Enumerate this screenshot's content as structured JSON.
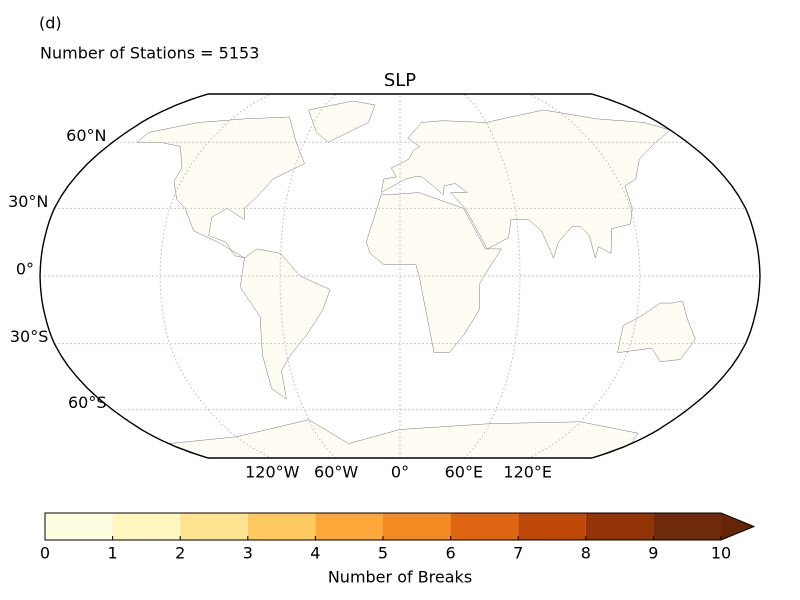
{
  "panel_label": "(d)",
  "subtitle": "Number of Stations = 5153",
  "map": {
    "title": "SLP",
    "lat_labels": [
      "60°N",
      "30°N",
      "0°",
      "30°S",
      "60°S"
    ],
    "lon_labels": [
      "120°W",
      "60°W",
      "0°",
      "60°E",
      "120°E"
    ]
  },
  "colorbar": {
    "ticks": [
      0,
      1,
      2,
      3,
      4,
      5,
      6,
      7,
      8,
      9,
      10
    ],
    "colors": [
      "#fffde0",
      "#fff5bf",
      "#fee391",
      "#fec95e",
      "#fea83c",
      "#f38a23",
      "#de6511",
      "#bd4808",
      "#923306",
      "#6e2a0b"
    ],
    "extend_color": "#662506",
    "label": "Number of Breaks"
  }
}
